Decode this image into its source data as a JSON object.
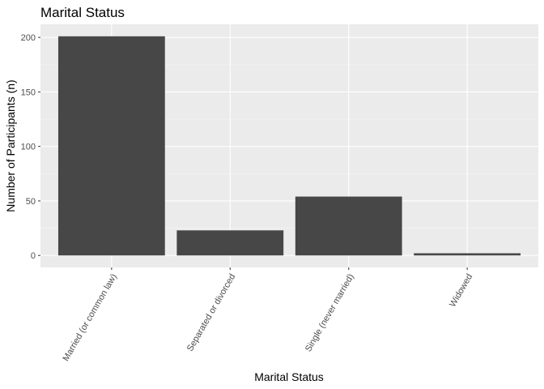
{
  "chart_data": {
    "type": "bar",
    "title": "Marital Status",
    "xlabel": "Marital Status",
    "ylabel": "Number of Participants (n)",
    "categories": [
      "Married (or common law)",
      "Separated or divorced",
      "Single (never married)",
      "Widowed"
    ],
    "values": [
      201,
      23,
      54,
      2
    ],
    "ylim": [
      -11,
      212
    ],
    "yticks": [
      0,
      50,
      100,
      150,
      200
    ],
    "grid": true,
    "legend": "none",
    "colors": {
      "bar": "#474747",
      "panel": "#ebebeb",
      "grid_major": "#ffffff",
      "grid_minor": "#f5f5f5",
      "tick_text": "#4d4d4d",
      "tick_mark": "#333333"
    }
  }
}
